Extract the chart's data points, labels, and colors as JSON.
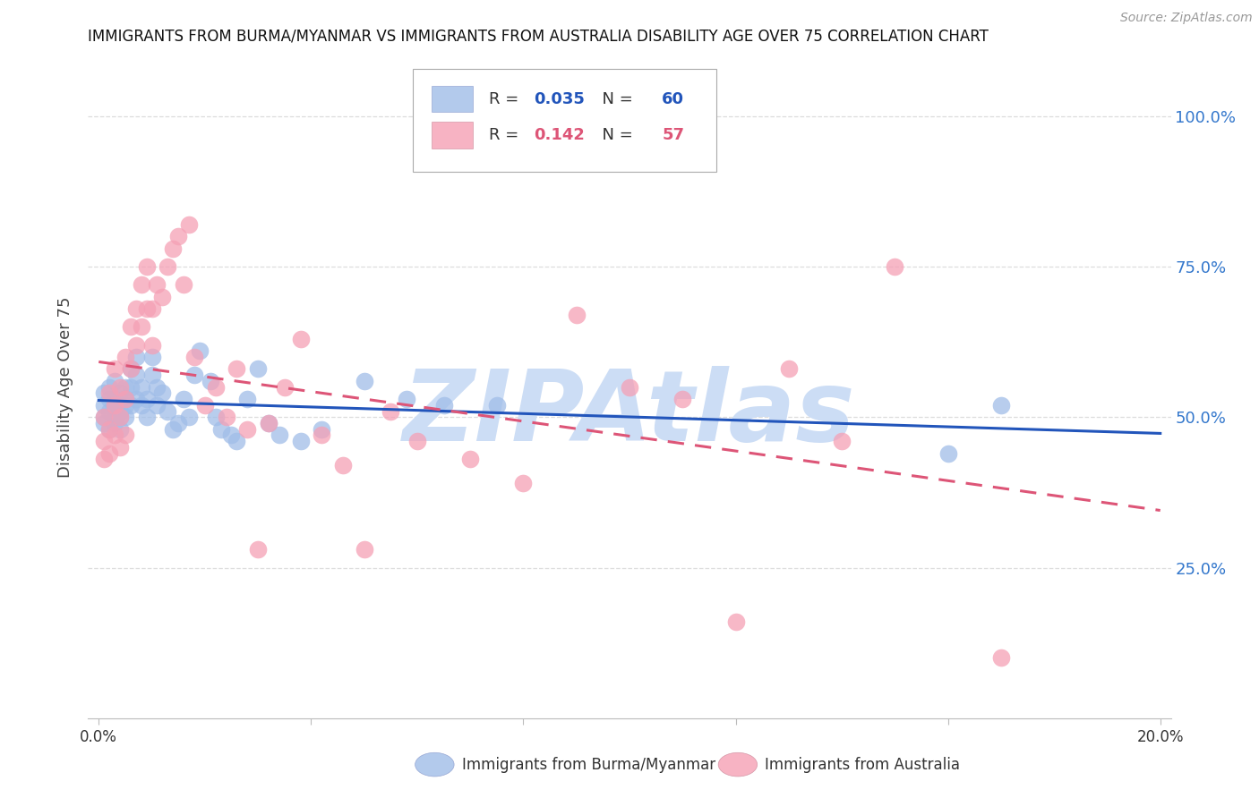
{
  "title": "IMMIGRANTS FROM BURMA/MYANMAR VS IMMIGRANTS FROM AUSTRALIA DISABILITY AGE OVER 75 CORRELATION CHART",
  "source": "Source: ZipAtlas.com",
  "ylabel": "Disability Age Over 75",
  "y_ticks": [
    0.25,
    0.5,
    0.75,
    1.0
  ],
  "y_tick_labels": [
    "25.0%",
    "50.0%",
    "75.0%",
    "100.0%"
  ],
  "ylim": [
    0.0,
    1.1
  ],
  "xlim": [
    -0.002,
    0.202
  ],
  "burma_R": 0.035,
  "burma_N": 60,
  "australia_R": 0.142,
  "australia_N": 57,
  "burma_color": "#a0bde8",
  "australia_color": "#f5a0b5",
  "burma_line_color": "#2255bb",
  "australia_line_color": "#dd5577",
  "watermark": "ZIPAtlas",
  "watermark_color": "#ccddf5",
  "background_color": "#ffffff",
  "title_color": "#111111",
  "right_axis_color": "#3377cc",
  "grid_color": "#dddddd",
  "burma_x": [
    0.001,
    0.001,
    0.001,
    0.001,
    0.002,
    0.002,
    0.002,
    0.002,
    0.003,
    0.003,
    0.003,
    0.003,
    0.003,
    0.004,
    0.004,
    0.004,
    0.004,
    0.005,
    0.005,
    0.005,
    0.005,
    0.006,
    0.006,
    0.006,
    0.007,
    0.007,
    0.007,
    0.008,
    0.008,
    0.009,
    0.009,
    0.01,
    0.01,
    0.011,
    0.011,
    0.012,
    0.013,
    0.014,
    0.015,
    0.016,
    0.017,
    0.018,
    0.019,
    0.021,
    0.022,
    0.023,
    0.025,
    0.026,
    0.028,
    0.03,
    0.032,
    0.034,
    0.038,
    0.042,
    0.05,
    0.058,
    0.065,
    0.075,
    0.16,
    0.17
  ],
  "burma_y": [
    0.5,
    0.52,
    0.49,
    0.54,
    0.51,
    0.53,
    0.48,
    0.55,
    0.52,
    0.5,
    0.49,
    0.53,
    0.56,
    0.51,
    0.5,
    0.54,
    0.48,
    0.55,
    0.53,
    0.5,
    0.52,
    0.58,
    0.55,
    0.52,
    0.6,
    0.57,
    0.53,
    0.55,
    0.52,
    0.53,
    0.5,
    0.6,
    0.57,
    0.55,
    0.52,
    0.54,
    0.51,
    0.48,
    0.49,
    0.53,
    0.5,
    0.57,
    0.61,
    0.56,
    0.5,
    0.48,
    0.47,
    0.46,
    0.53,
    0.58,
    0.49,
    0.47,
    0.46,
    0.48,
    0.56,
    0.53,
    0.52,
    0.52,
    0.44,
    0.52
  ],
  "australia_x": [
    0.001,
    0.001,
    0.001,
    0.002,
    0.002,
    0.002,
    0.003,
    0.003,
    0.003,
    0.004,
    0.004,
    0.004,
    0.005,
    0.005,
    0.005,
    0.006,
    0.006,
    0.007,
    0.007,
    0.008,
    0.008,
    0.009,
    0.009,
    0.01,
    0.01,
    0.011,
    0.012,
    0.013,
    0.014,
    0.015,
    0.016,
    0.017,
    0.018,
    0.02,
    0.022,
    0.024,
    0.026,
    0.028,
    0.03,
    0.032,
    0.035,
    0.038,
    0.042,
    0.046,
    0.05,
    0.055,
    0.06,
    0.07,
    0.08,
    0.09,
    0.1,
    0.11,
    0.12,
    0.13,
    0.14,
    0.15,
    0.17
  ],
  "australia_y": [
    0.5,
    0.46,
    0.43,
    0.54,
    0.48,
    0.44,
    0.58,
    0.52,
    0.47,
    0.55,
    0.5,
    0.45,
    0.6,
    0.53,
    0.47,
    0.65,
    0.58,
    0.68,
    0.62,
    0.72,
    0.65,
    0.75,
    0.68,
    0.68,
    0.62,
    0.72,
    0.7,
    0.75,
    0.78,
    0.8,
    0.72,
    0.82,
    0.6,
    0.52,
    0.55,
    0.5,
    0.58,
    0.48,
    0.28,
    0.49,
    0.55,
    0.63,
    0.47,
    0.42,
    0.28,
    0.51,
    0.46,
    0.43,
    0.39,
    0.67,
    0.55,
    0.53,
    0.16,
    0.58,
    0.46,
    0.75,
    0.1
  ]
}
